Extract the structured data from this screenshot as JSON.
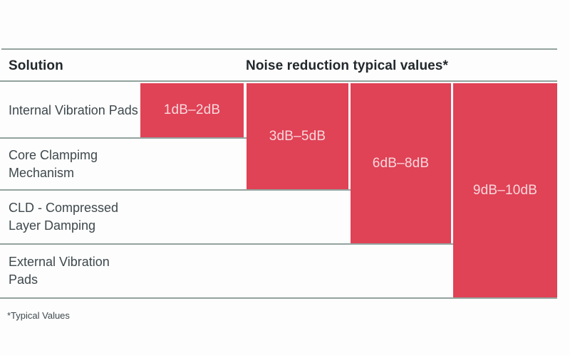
{
  "header": {
    "solution_label": "Solution",
    "values_label": "Noise reduction typical values*"
  },
  "rows": [
    {
      "label": "Internal Vibration Pads",
      "value": "1dB–2dB"
    },
    {
      "label": "Core Clampimg Mechanism",
      "value": "3dB–5dB"
    },
    {
      "label": "CLD - Compressed Layer Damping",
      "value": "6dB–8dB"
    },
    {
      "label": "External Vibration Pads",
      "value": "9dB–10dB"
    }
  ],
  "footnote": "*Typical Values",
  "colors": {
    "bar": "#e04256",
    "bar_text": "#f8d8dc",
    "rule": "#93a39e",
    "heading_text": "#22282c",
    "label_text": "#3e484c",
    "page_bg": "#fdfdfd"
  },
  "chart_data": {
    "type": "bar",
    "title": "Noise reduction typical values*",
    "categories": [
      "Internal Vibration Pads",
      "Core Clampimg Mechanism",
      "CLD - Compressed Layer Damping",
      "External Vibration Pads"
    ],
    "values": [
      2,
      5,
      8,
      10
    ],
    "value_labels": [
      "1dB–2dB",
      "3dB–5dB",
      "6dB–8dB",
      "9dB–10dB"
    ],
    "ranges_db": [
      [
        1,
        2
      ],
      [
        3,
        5
      ],
      [
        6,
        8
      ],
      [
        9,
        10
      ]
    ],
    "xlabel": "Solution",
    "ylabel": "Noise reduction (dB)",
    "ylim": [
      0,
      10
    ],
    "grid": false,
    "legend": "none",
    "bar_color": "#e04256",
    "footnote": "*Typical Values"
  }
}
